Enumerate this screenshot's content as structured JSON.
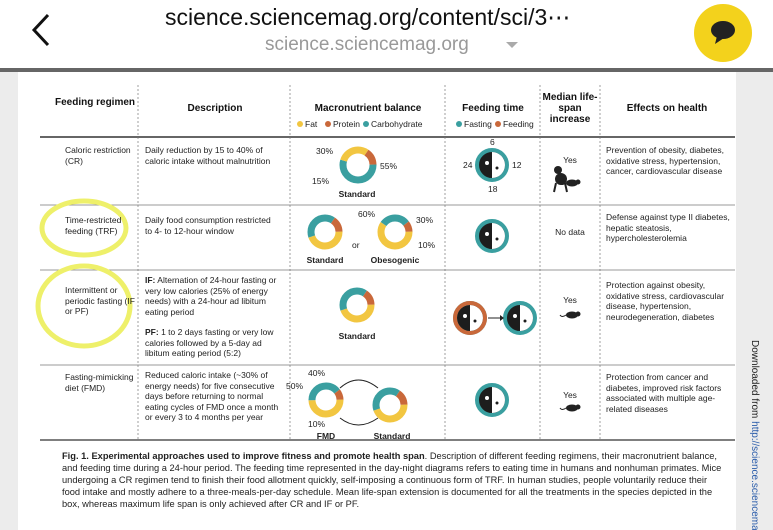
{
  "browser": {
    "url": "science.sciencemag.org/content/sci/3⋯",
    "domain": "science.sciencemag.org"
  },
  "table": {
    "headers": {
      "regimen": "Feeding regimen",
      "description": "Description",
      "macro": "Macronutrient balance",
      "feeding_time": "Feeding time",
      "lifespan": "Median life-span increase",
      "effects": "Effects on health"
    },
    "macro_legend": [
      "Fat",
      "Protein",
      "Carbohydrate"
    ],
    "time_legend": [
      "Fasting",
      "Feeding"
    ],
    "rows": [
      {
        "regimen": "Caloric restriction (CR)",
        "description": "Daily reduction by 15 to 40% of caloric intake without malnutrition",
        "donut_labels": [
          "30%",
          "55%",
          "15%"
        ],
        "donut_names": [
          "Standard"
        ],
        "clock_labels": [
          "6",
          "12",
          "18",
          "24"
        ],
        "lifespan": "Yes",
        "effects": "Prevention of obesity, diabetes, oxidative stress, hypertension, cancer, cardiovascular disease"
      },
      {
        "regimen": "Time-restricted feeding (TRF)",
        "description": "Daily food consumption restricted to 4- to 12-hour window",
        "donut_labels": [
          "60%",
          "30%",
          "10%"
        ],
        "donut_names": [
          "Standard",
          "Obesogenic"
        ],
        "or": "or",
        "lifespan": "No data",
        "effects": "Defense against type II diabetes, hepatic steatosis, hypercholesterolemia"
      },
      {
        "regimen": "Intermittent or periodic fasting (IF or PF)",
        "description_if_label": "IF:",
        "description_if": "Alternation of 24-hour fasting or very low calories (25% of energy needs) with a 24-hour ad libitum eating period",
        "description_pf_label": "PF:",
        "description_pf": "1 to 2 days fasting or very low calories followed by a 5-day ad libitum eating period (5:2)",
        "donut_names": [
          "Standard"
        ],
        "lifespan": "Yes",
        "effects": "Protection against obesity, oxidative stress, cardiovascular disease, hypertension, neurodegeneration, diabetes"
      },
      {
        "regimen": "Fasting-mimicking diet (FMD)",
        "description": "Reduced caloric intake (~30% of energy needs) for five consecutive days before returning to normal eating cycles of FMD once a month or every 3 to 4 months per year",
        "donut_labels": [
          "40%",
          "50%",
          "10%"
        ],
        "donut_names": [
          "FMD",
          "Standard"
        ],
        "lifespan": "Yes",
        "effects": "Protection from cancer and diabetes, improved risk factors associated with multiple age-related diseases"
      }
    ]
  },
  "caption": {
    "bold": "Fig. 1. Experimental approaches used to improve fitness and promote health span",
    "text": ". Description of different feeding regimens, their macronutrient balance, and feeding time during a 24-hour period. The feeding time represented in the day-night diagrams refers to eating time in humans and nonhuman primates. Mice undergoing a CR regimen tend to finish their food allotment quickly, self-imposing a continuous form of TRF. In human studies, people voluntarily reduce their food intake and mostly adhere to a three-meals-per-day schedule. Mean life-span extension is documented for all the treatments in the species depicted in the box, whereas maximum life span is only achieved after CR and IF or PF."
  },
  "side_note_prefix": "Downloaded from ",
  "side_note_link": "http://science.sciencemag"
}
